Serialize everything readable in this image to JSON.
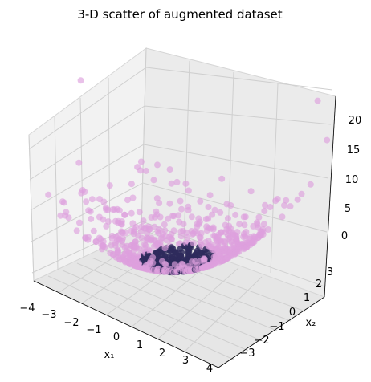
{
  "chart_data": {
    "type": "scatter",
    "projection": "3d",
    "title": "3-D scatter of augmented dataset",
    "xlabel": "x₁",
    "ylabel": "x₂",
    "zlabel": "",
    "xlim": [
      -4,
      4
    ],
    "ylim": [
      -3,
      3
    ],
    "zlim": [
      0,
      22
    ],
    "xticks": [
      "−4",
      "−3",
      "−2",
      "−1",
      "0",
      "1",
      "2",
      "3",
      "4"
    ],
    "yticks": [
      "−3",
      "−2",
      "−1",
      "0",
      "1",
      "2",
      "3"
    ],
    "zticks": [
      "0",
      "5",
      "10",
      "15",
      "20"
    ],
    "grid": true,
    "series": [
      {
        "color": "#dda0dd",
        "marker": "circle",
        "approx_relation": "z = x1^2 + x2^2",
        "sample_points": [
          {
            "x": 0.0,
            "y": 0.0,
            "z": 0.0
          },
          {
            "x": 1.5,
            "y": 1.2,
            "z": 3.7
          },
          {
            "x": -2.8,
            "y": 1.6,
            "z": 10.4
          },
          {
            "x": 3.2,
            "y": -1.4,
            "z": 12.2
          },
          {
            "x": -3.6,
            "y": -0.6,
            "z": 13.3
          },
          {
            "x": 0.6,
            "y": 4.6,
            "z": 21.5
          },
          {
            "x": 2.9,
            "y": 2.4,
            "z": 14.2
          },
          {
            "x": -1.2,
            "y": -3.3,
            "z": 12.3
          }
        ]
      }
    ],
    "dense_center": {
      "color": "#2e2a5c",
      "region": "x1, x2 near 0, z near 0"
    }
  }
}
